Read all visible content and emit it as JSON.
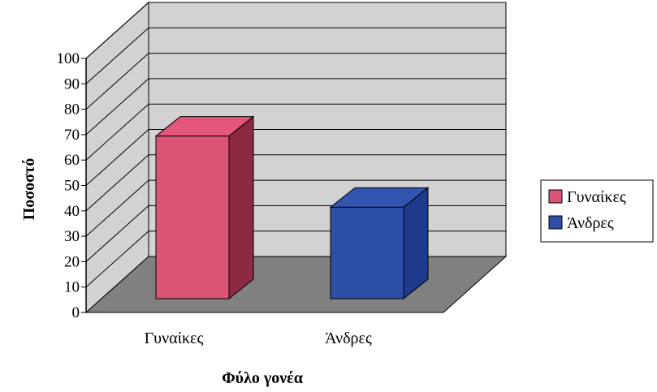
{
  "chart_data": {
    "type": "bar",
    "categories": [
      "Γυναίκες",
      "Άνδρες"
    ],
    "series": [
      {
        "name": "Γυναίκες",
        "values": [
          64,
          null
        ]
      },
      {
        "name": "Άνδρες",
        "values": [
          null,
          36
        ]
      }
    ],
    "xlabel": "Φύλο γονέα",
    "ylabel": "Ποσοστό",
    "ylim": [
      0,
      100
    ],
    "yticks": [
      "0",
      "10",
      "20",
      "30",
      "40",
      "50",
      "60",
      "70",
      "80",
      "90",
      "100"
    ],
    "grid": true,
    "legend_position": "right",
    "colors": {
      "Γυναίκες": {
        "front": "#dc5474",
        "side": "#8c2a44",
        "top": "#e4567a"
      },
      "Άνδρες": {
        "front": "#2e4fa8",
        "side": "#1e3a8c",
        "top": "#3355b0"
      },
      "wall": "#d2d2d2",
      "floor": "#808080"
    }
  }
}
